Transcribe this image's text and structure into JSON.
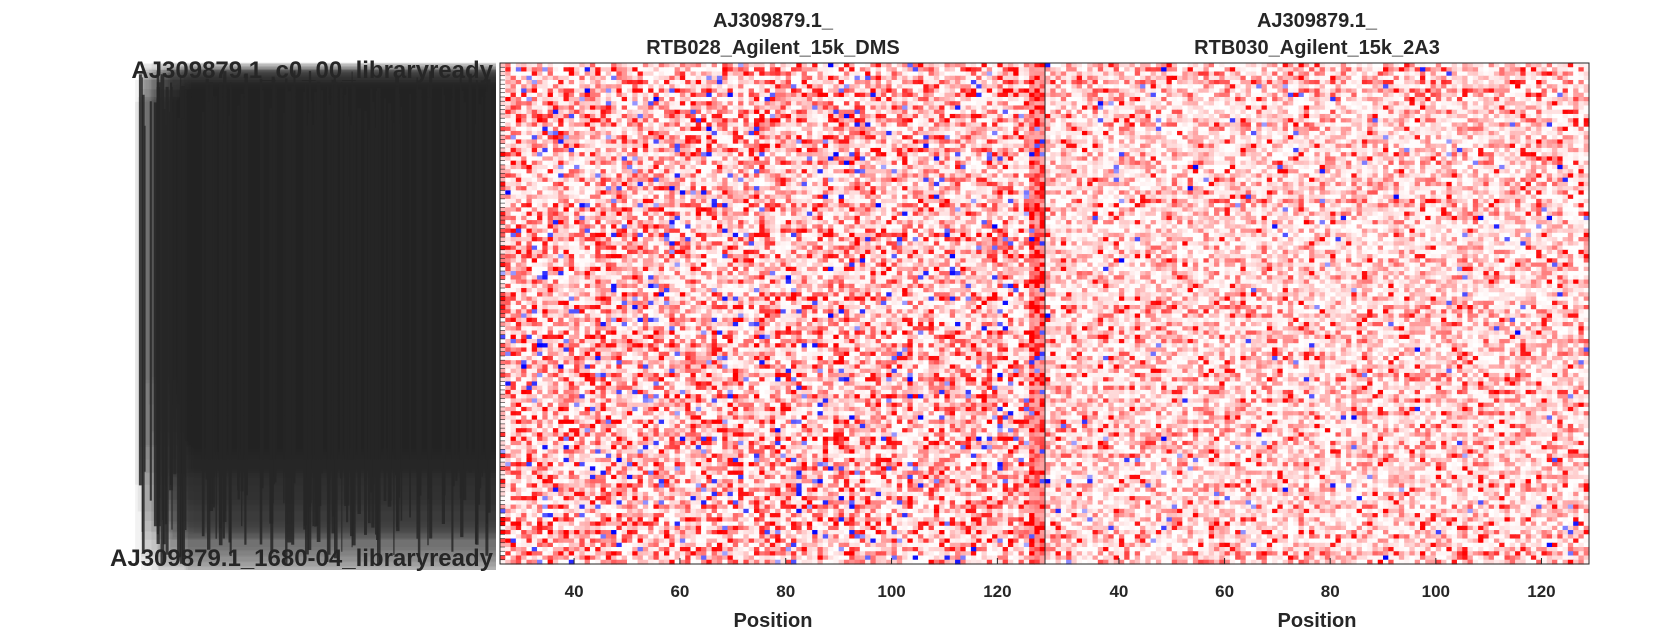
{
  "chart_data": [
    {
      "type": "heatmap",
      "title_line1": "AJ309879.1_",
      "title_line2": "RTB028_Agilent_15k_DMS",
      "xlabel": "Position",
      "x_ticks": [
        40,
        60,
        80,
        100,
        120
      ],
      "xlim": [
        26,
        129
      ],
      "colormap": [
        "#0000ff",
        "#ffffff",
        "#ff0000"
      ],
      "values_note": "dense reactivity matrix; mostly light to saturated red with scattered blue cells"
    },
    {
      "type": "heatmap",
      "title_line1": "AJ309879.1_",
      "title_line2": "RTB030_Agilent_15k_2A3",
      "xlabel": "Position",
      "x_ticks": [
        40,
        60,
        80,
        100,
        120
      ],
      "xlim": [
        26,
        129
      ],
      "colormap": [
        "#0000ff",
        "#ffffff",
        "#ff0000"
      ],
      "values_note": "dense reactivity matrix; lighter reds with sparse blue cells"
    }
  ],
  "row_labels": {
    "visible_top": "AJ309879.1_c0_00_libraryready",
    "visible_bottom": "AJ309879.1_1680-04_libraryready"
  },
  "colors": {
    "text": "#262626",
    "blue": "#0000ff",
    "red": "#ff0000"
  }
}
